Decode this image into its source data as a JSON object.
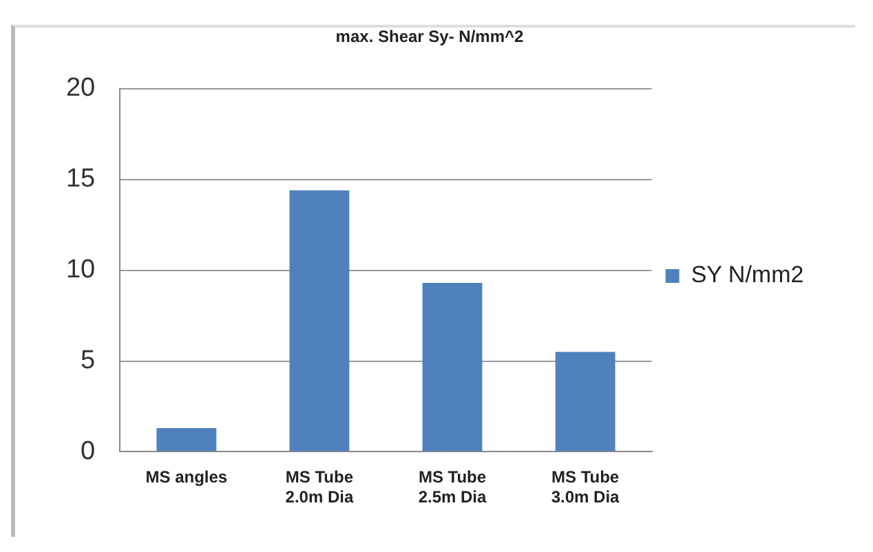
{
  "chart_data": {
    "type": "bar",
    "title": "max. Shear Sy- N/mm^2",
    "categories": [
      "MS angles",
      "MS Tube 2.0m Dia",
      "MS Tube 2.5m Dia",
      "MS Tube 3.0m Dia"
    ],
    "series": [
      {
        "name": "SY N/mm2",
        "color": "#4f81bd",
        "values": [
          1.3,
          14.4,
          9.3,
          5.5
        ]
      }
    ],
    "ylim": [
      0,
      20
    ],
    "yticks": [
      0,
      5,
      10,
      15,
      20
    ],
    "grid": "y",
    "legend": "right"
  }
}
